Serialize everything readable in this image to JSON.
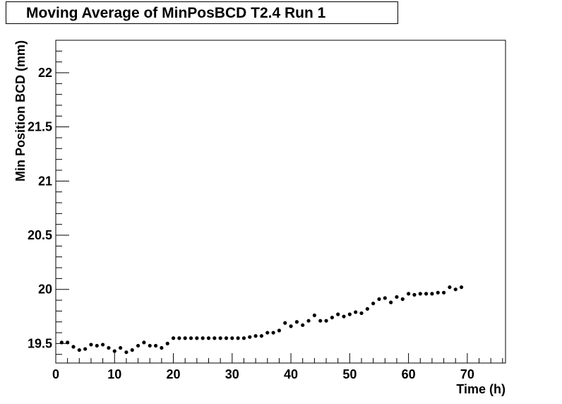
{
  "chart_data": {
    "type": "scatter",
    "title": "Moving Average of MinPosBCD T2.4 Run 1",
    "xlabel": "Time (h)",
    "ylabel": "Min Position BCD (mm)",
    "xlim": [
      0,
      76.5
    ],
    "ylim": [
      19.32,
      22.3
    ],
    "xticks": [
      0,
      10,
      20,
      30,
      40,
      50,
      60,
      70
    ],
    "yticks": [
      19.5,
      20,
      20.5,
      21,
      21.5,
      22
    ],
    "xtick_labels": [
      "0",
      "10",
      "20",
      "30",
      "40",
      "50",
      "60",
      "70"
    ],
    "ytick_labels": [
      "19.5",
      "20",
      "20.5",
      "21",
      "21.5",
      "22"
    ],
    "grid": false,
    "marker_color": "#000000",
    "series": [
      {
        "x": [
          1,
          2,
          3,
          4,
          5,
          6,
          7,
          8,
          9,
          10,
          11,
          12,
          13,
          14,
          15,
          16,
          17,
          18,
          19,
          20,
          21,
          22,
          23,
          24,
          25,
          26,
          27,
          28,
          29,
          30,
          31,
          32,
          33,
          34,
          35,
          36,
          37,
          38,
          39,
          40,
          41,
          42,
          43,
          44,
          45,
          46,
          47,
          48,
          49,
          50,
          51,
          52,
          53,
          54,
          55,
          56,
          57,
          58,
          59,
          60,
          61,
          62,
          63,
          64,
          65,
          66,
          67,
          68,
          69
        ],
        "y": [
          19.51,
          19.51,
          19.47,
          19.44,
          19.45,
          19.49,
          19.48,
          19.49,
          19.46,
          19.43,
          19.46,
          19.42,
          19.44,
          19.48,
          19.51,
          19.48,
          19.48,
          19.46,
          19.5,
          19.55,
          19.55,
          19.55,
          19.55,
          19.55,
          19.55,
          19.55,
          19.55,
          19.55,
          19.55,
          19.55,
          19.55,
          19.55,
          19.56,
          19.57,
          19.57,
          19.6,
          19.6,
          19.62,
          19.69,
          19.66,
          19.7,
          19.67,
          19.71,
          19.76,
          19.71,
          19.71,
          19.74,
          19.77,
          19.75,
          19.77,
          19.79,
          19.78,
          19.82,
          19.87,
          19.91,
          19.92,
          19.88,
          19.93,
          19.91,
          19.96,
          19.95,
          19.96,
          19.96,
          19.96,
          19.97,
          19.97,
          20.02,
          20.0,
          20.02
        ]
      }
    ]
  }
}
